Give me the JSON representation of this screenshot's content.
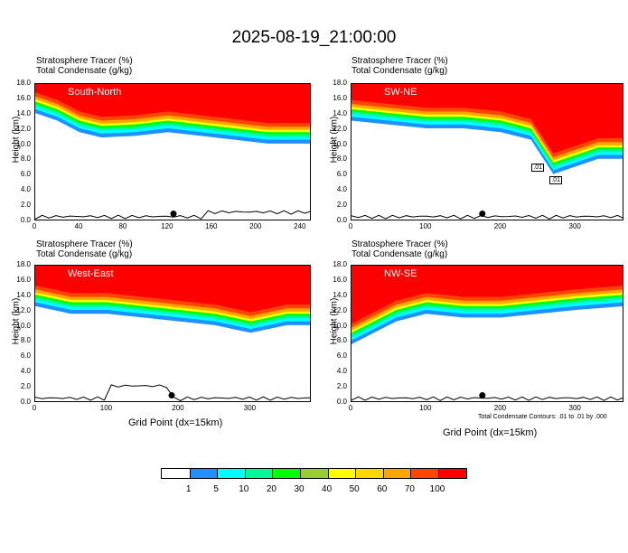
{
  "title": "2025-08-19_21:00:00",
  "subtitle_line1": "Stratosphere Tracer   (%)",
  "subtitle_line2": "Total Condensate   (g/kg)",
  "ylabel": "Height (km)",
  "xlabel": "Grid Point (dx=15km)",
  "contour_note": "Total Condensate Contours: .01 to .01 by .000",
  "colorbar": {
    "colors": [
      "#ffffff",
      "#1e90ff",
      "#00ffff",
      "#00fa9a",
      "#00ff00",
      "#9acd32",
      "#ffff00",
      "#ffd700",
      "#ffa500",
      "#ff4500",
      "#ff0000"
    ],
    "labels": [
      "1",
      "5",
      "10",
      "20",
      "30",
      "40",
      "50",
      "60",
      "70",
      "100"
    ]
  },
  "chart_data": [
    {
      "type": "heatmap",
      "name": "South-North",
      "ylim": [
        0,
        18
      ],
      "xlim": [
        0,
        250
      ],
      "xticks": [
        0,
        40,
        80,
        120,
        160,
        200,
        240
      ],
      "yticks": [
        0.0,
        2.0,
        4.0,
        6.0,
        8.0,
        10.0,
        12.0,
        14.0,
        16.0,
        18.0
      ],
      "ytick_labels": [
        "0.0",
        "2.0",
        "4.0",
        "6.0",
        "8.0",
        "10.0",
        "12.0",
        "14.0",
        "16.0",
        "18.0"
      ],
      "tropopause_km": [
        [
          0,
          16.0
        ],
        [
          20,
          15.0
        ],
        [
          40,
          13.5
        ],
        [
          60,
          12.8
        ],
        [
          90,
          13.0
        ],
        [
          120,
          13.5
        ],
        [
          150,
          13.0
        ],
        [
          180,
          12.5
        ],
        [
          210,
          12.0
        ],
        [
          250,
          12.0
        ]
      ],
      "contour_labels": [],
      "marker": [
        125,
        1.0
      ]
    },
    {
      "type": "heatmap",
      "name": "SW-NE",
      "ylim": [
        0,
        18
      ],
      "xlim": [
        0,
        365
      ],
      "xticks": [
        0,
        100,
        200,
        300
      ],
      "yticks": [
        0.0,
        2.0,
        4.0,
        6.0,
        8.0,
        10.0,
        12.0,
        14.0,
        16.0,
        18.0
      ],
      "ytick_labels": [
        "0.0",
        "2.0",
        "4.0",
        "6.0",
        "8.0",
        "10.0",
        "12.0",
        "14.0",
        "16.0",
        "18.0"
      ],
      "tropopause_km": [
        [
          0,
          15.0
        ],
        [
          50,
          14.5
        ],
        [
          100,
          14.0
        ],
        [
          150,
          14.0
        ],
        [
          200,
          13.5
        ],
        [
          240,
          12.5
        ],
        [
          270,
          8.0
        ],
        [
          300,
          9.0
        ],
        [
          330,
          10.0
        ],
        [
          365,
          10.0
        ]
      ],
      "contour_labels": [
        ".01",
        ".01"
      ],
      "marker": [
        175,
        1.0
      ]
    },
    {
      "type": "heatmap",
      "name": "West-East",
      "ylim": [
        0,
        18
      ],
      "xlim": [
        0,
        385
      ],
      "xticks": [
        0,
        100,
        200,
        300
      ],
      "yticks": [
        0.0,
        2.0,
        4.0,
        6.0,
        8.0,
        10.0,
        12.0,
        14.0,
        16.0,
        18.0
      ],
      "ytick_labels": [
        "0.0",
        "2.0",
        "4.0",
        "6.0",
        "8.0",
        "10.0",
        "12.0",
        "14.0",
        "16.0",
        "18.0"
      ],
      "tropopause_km": [
        [
          0,
          14.5
        ],
        [
          50,
          13.5
        ],
        [
          100,
          13.5
        ],
        [
          150,
          13.0
        ],
        [
          200,
          12.5
        ],
        [
          250,
          12.0
        ],
        [
          300,
          11.0
        ],
        [
          350,
          12.0
        ],
        [
          385,
          12.0
        ]
      ],
      "contour_labels": [],
      "marker": [
        190,
        1.0
      ]
    },
    {
      "type": "heatmap",
      "name": "NW-SE",
      "ylim": [
        0,
        18
      ],
      "xlim": [
        0,
        365
      ],
      "xticks": [
        0,
        100,
        200,
        300
      ],
      "yticks": [
        0.0,
        2.0,
        4.0,
        6.0,
        8.0,
        10.0,
        12.0,
        14.0,
        16.0,
        18.0
      ],
      "ytick_labels": [
        "0.0",
        "2.0",
        "4.0",
        "6.0",
        "8.0",
        "10.0",
        "12.0",
        "14.0",
        "16.0",
        "18.0"
      ],
      "tropopause_km": [
        [
          0,
          9.5
        ],
        [
          30,
          11.0
        ],
        [
          60,
          12.5
        ],
        [
          100,
          13.5
        ],
        [
          150,
          13.0
        ],
        [
          200,
          13.0
        ],
        [
          250,
          13.5
        ],
        [
          300,
          14.0
        ],
        [
          365,
          14.5
        ]
      ],
      "contour_labels": [],
      "marker": [
        175,
        1.0
      ]
    }
  ]
}
